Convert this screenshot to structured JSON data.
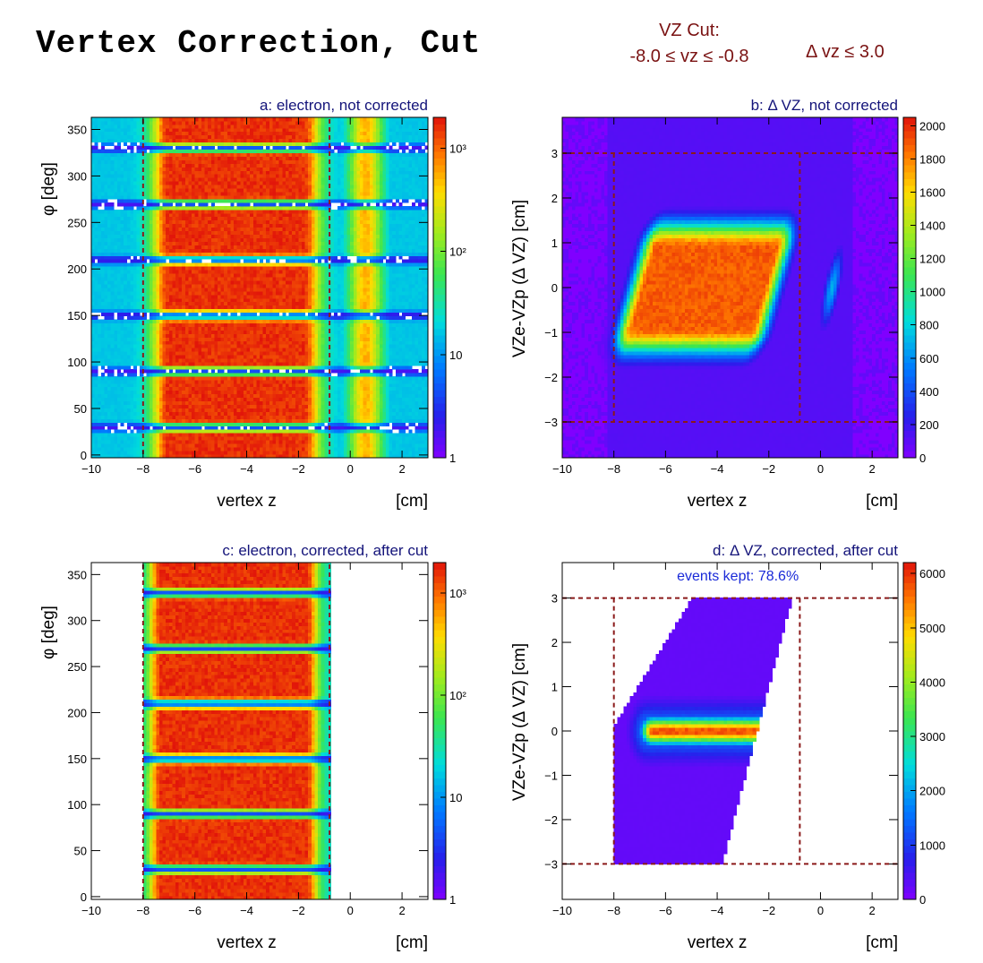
{
  "page_title": "Vertex Correction, Cut",
  "cuts": {
    "vz_label": "VZ Cut:",
    "vz_range": "-8.0 ≤ vz ≤ -0.8",
    "dvz": "Δ vz ≤ 3.0"
  },
  "colors": {
    "cut_lines": "#8b1a1a",
    "panel_titles": "#14147a",
    "annotation": "#1a2ad8"
  },
  "chart_data": [
    {
      "id": "a",
      "type": "heatmap",
      "title": "a: electron, not corrected",
      "xlabel": "vertex z",
      "xunit": "[cm]",
      "ylabel": "φ  [deg]",
      "xlim": [
        -10,
        3
      ],
      "ylim": [
        -3,
        363
      ],
      "xticks": [
        -10,
        -8,
        -6,
        -4,
        -2,
        0,
        2
      ],
      "yticks": [
        0,
        50,
        100,
        150,
        200,
        250,
        300,
        350
      ],
      "z_scale": "log",
      "z_ticks": [
        "1",
        "10",
        "10²",
        "10³"
      ],
      "cut_x": [
        -8.0,
        -0.8
      ],
      "cut_y": [],
      "grid": false
    },
    {
      "id": "b",
      "type": "heatmap",
      "title": "b: Δ VZ, not corrected",
      "xlabel": "vertex z",
      "xunit": "[cm]",
      "ylabel": "VZe-VZp (Δ VZ) [cm]",
      "xlim": [
        -10,
        3
      ],
      "ylim": [
        -3.8,
        3.8
      ],
      "xticks": [
        -10,
        -8,
        -6,
        -4,
        -2,
        0,
        2
      ],
      "yticks": [
        -3,
        -2,
        -1,
        0,
        1,
        2,
        3
      ],
      "z_scale": "linear",
      "zlim": [
        0,
        2050
      ],
      "z_ticks": [
        "0",
        "200",
        "400",
        "600",
        "800",
        "1000",
        "1200",
        "1400",
        "1600",
        "1800",
        "2000"
      ],
      "cut_x": [
        -8.0,
        -0.8
      ],
      "cut_y": [
        -3.0,
        3.0
      ],
      "grid": false
    },
    {
      "id": "c",
      "type": "heatmap",
      "title": "c: electron, corrected, after cut",
      "xlabel": "vertex z",
      "xunit": "[cm]",
      "ylabel": "φ  [deg]",
      "xlim": [
        -10,
        3
      ],
      "ylim": [
        -3,
        363
      ],
      "xticks": [
        -10,
        -8,
        -6,
        -4,
        -2,
        0,
        2
      ],
      "yticks": [
        0,
        50,
        100,
        150,
        200,
        250,
        300,
        350
      ],
      "z_scale": "log",
      "z_ticks": [
        "1",
        "10",
        "10²",
        "10³"
      ],
      "cut_x": [
        -8.0,
        -0.8
      ],
      "cut_y": [],
      "grid": false
    },
    {
      "id": "d",
      "type": "heatmap",
      "title": "d: Δ VZ, corrected, after cut",
      "annotation": "events kept: 78.6%",
      "xlabel": "vertex z",
      "xunit": "[cm]",
      "ylabel": "VZe-VZp (Δ VZ) [cm]",
      "xlim": [
        -10,
        3
      ],
      "ylim": [
        -3.8,
        3.8
      ],
      "xticks": [
        -10,
        -8,
        -6,
        -4,
        -2,
        0,
        2
      ],
      "yticks": [
        -3,
        -2,
        -1,
        0,
        1,
        2,
        3
      ],
      "z_scale": "linear",
      "zlim": [
        0,
        6200
      ],
      "z_ticks": [
        "0",
        "1000",
        "2000",
        "3000",
        "4000",
        "5000",
        "6000"
      ],
      "cut_x": [
        -8.0,
        -0.8
      ],
      "cut_y": [
        -3.0,
        3.0
      ],
      "grid": false
    }
  ]
}
